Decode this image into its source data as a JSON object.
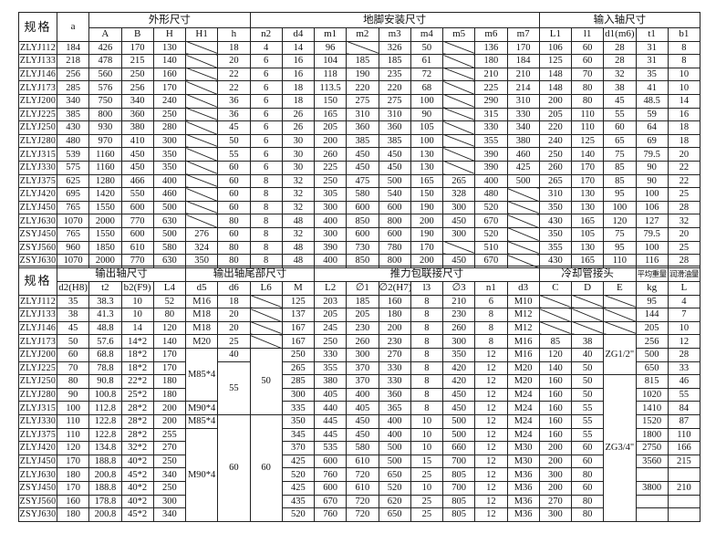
{
  "top": {
    "spec_label": "规格",
    "a_label": "a",
    "groups": [
      "外形尺寸",
      "地脚安装尺寸",
      "输入轴尺寸"
    ],
    "headers": [
      "A",
      "B",
      "H",
      "H1",
      "h",
      "n2",
      "d4",
      "m1",
      "m2",
      "m3",
      "m4",
      "m5",
      "m6",
      "m7",
      "L1",
      "l1",
      "d1(m6)",
      "t1",
      "b1"
    ],
    "rows": [
      [
        "ZLYJ112",
        "184",
        "426",
        "170",
        "130",
        null,
        "18",
        "4",
        "14",
        "96",
        null,
        "326",
        "50",
        null,
        "136",
        "170",
        "106",
        "60",
        "28",
        "31",
        "8"
      ],
      [
        "ZLYJ133",
        "218",
        "478",
        "215",
        "140",
        null,
        "20",
        "6",
        "16",
        "104",
        "185",
        "185",
        "61",
        null,
        "180",
        "184",
        "125",
        "60",
        "28",
        "31",
        "8"
      ],
      [
        "ZLYJ146",
        "256",
        "560",
        "250",
        "160",
        null,
        "22",
        "6",
        "16",
        "118",
        "190",
        "235",
        "72",
        null,
        "210",
        "210",
        "148",
        "70",
        "32",
        "35",
        "10"
      ],
      [
        "ZLYJ173",
        "285",
        "576",
        "256",
        "170",
        null,
        "22",
        "6",
        "18",
        "113.5",
        "220",
        "220",
        "68",
        null,
        "225",
        "214",
        "148",
        "80",
        "38",
        "41",
        "10"
      ],
      [
        "ZLYJ200",
        "340",
        "750",
        "340",
        "240",
        null,
        "36",
        "6",
        "18",
        "150",
        "275",
        "275",
        "100",
        null,
        "290",
        "310",
        "200",
        "80",
        "45",
        "48.5",
        "14"
      ],
      [
        "ZLYJ225",
        "385",
        "800",
        "360",
        "250",
        null,
        "36",
        "6",
        "26",
        "165",
        "310",
        "310",
        "90",
        null,
        "315",
        "330",
        "205",
        "110",
        "55",
        "59",
        "16"
      ],
      [
        "ZLYJ250",
        "430",
        "930",
        "380",
        "280",
        null,
        "45",
        "6",
        "26",
        "205",
        "360",
        "360",
        "105",
        null,
        "330",
        "340",
        "220",
        "110",
        "60",
        "64",
        "18"
      ],
      [
        "ZLYJ280",
        "480",
        "970",
        "410",
        "300",
        null,
        "50",
        "6",
        "30",
        "200",
        "385",
        "385",
        "100",
        null,
        "355",
        "380",
        "240",
        "125",
        "65",
        "69",
        "18"
      ],
      [
        "ZLYJ315",
        "539",
        "1160",
        "450",
        "350",
        null,
        "55",
        "6",
        "30",
        "260",
        "450",
        "450",
        "130",
        null,
        "390",
        "460",
        "250",
        "140",
        "75",
        "79.5",
        "20"
      ],
      [
        "ZLYJ330",
        "575",
        "1160",
        "450",
        "350",
        null,
        "60",
        "6",
        "30",
        "225",
        "450",
        "450",
        "130",
        null,
        "390",
        "425",
        "260",
        "170",
        "85",
        "90",
        "22"
      ],
      [
        "ZLYJ375",
        "625",
        "1280",
        "466",
        "400",
        null,
        "60",
        "8",
        "32",
        "250",
        "475",
        "500",
        "165",
        "265",
        "400",
        "500",
        "265",
        "170",
        "85",
        "90",
        "22"
      ],
      [
        "ZLYJ420",
        "695",
        "1420",
        "550",
        "460",
        null,
        "60",
        "8",
        "32",
        "305",
        "580",
        "540",
        "150",
        "328",
        "480",
        null,
        "310",
        "130",
        "95",
        "100",
        "25"
      ],
      [
        "ZLYJ450",
        "765",
        "1550",
        "600",
        "500",
        null,
        "60",
        "8",
        "32",
        "300",
        "600",
        "600",
        "190",
        "300",
        "520",
        null,
        "350",
        "130",
        "100",
        "106",
        "28"
      ],
      [
        "ZLYJ630",
        "1070",
        "2000",
        "770",
        "630",
        null,
        "80",
        "8",
        "48",
        "400",
        "850",
        "800",
        "200",
        "450",
        "670",
        null,
        "430",
        "165",
        "120",
        "127",
        "32"
      ],
      [
        "ZSYJ450",
        "765",
        "1550",
        "600",
        "500",
        "276",
        "60",
        "8",
        "32",
        "300",
        "600",
        "600",
        "190",
        "300",
        "520",
        null,
        "350",
        "105",
        "75",
        "79.5",
        "20"
      ],
      [
        "ZSYJ560",
        "960",
        "1850",
        "610",
        "580",
        "324",
        "80",
        "8",
        "48",
        "390",
        "730",
        "780",
        "170",
        null,
        "510",
        null,
        "355",
        "130",
        "95",
        "100",
        "25"
      ],
      [
        "ZSYJ630",
        "1070",
        "2000",
        "770",
        "630",
        "350",
        "80",
        "8",
        "48",
        "400",
        "850",
        "800",
        "200",
        "450",
        "670",
        null,
        "430",
        "165",
        "110",
        "116",
        "28"
      ]
    ]
  },
  "bottom": {
    "spec_label": "规格",
    "groups": [
      "输出轴尺寸",
      "输出轴尾部尺寸",
      "推力包联接尺寸",
      "冷却管接头",
      "平均重量",
      "润滑油量"
    ],
    "headers": [
      "d2(H8)",
      "t2",
      "b2(F9)",
      "L4",
      "d5",
      "d6",
      "L6",
      "M",
      "L2",
      "∅1",
      "∅2(H7)",
      "l3",
      "∅3",
      "n1",
      "d3",
      "C",
      "D",
      "E",
      "kg",
      "L"
    ],
    "rows": [
      [
        "ZLYJ112",
        "35",
        "38.3",
        "10",
        "52",
        "M16",
        "18",
        null,
        "125",
        "203",
        "185",
        "160",
        "8",
        "210",
        "6",
        "M10",
        null,
        null,
        null,
        "95",
        "4"
      ],
      [
        "ZLYJ133",
        "38",
        "41.3",
        "10",
        "80",
        "M18",
        "20",
        null,
        "137",
        "205",
        "205",
        "180",
        "8",
        "230",
        "8",
        "M12",
        null,
        null,
        null,
        "144",
        "7"
      ],
      [
        "ZLYJ146",
        "45",
        "48.8",
        "14",
        "120",
        "M18",
        "20",
        null,
        "167",
        "245",
        "230",
        "200",
        "8",
        "260",
        "8",
        "M12",
        null,
        null,
        null,
        "205",
        "10"
      ],
      [
        "ZLYJ173",
        "50",
        "57.6",
        "14*2",
        "140",
        "M20",
        "25",
        null,
        "167",
        "250",
        "260",
        "230",
        "8",
        "300",
        "8",
        "M16",
        "85",
        "38",
        {
          "v": "ZG1/2\"",
          "rowspan": 3
        },
        "256",
        "12"
      ],
      [
        "ZLYJ200",
        "60",
        "68.8",
        "18*2",
        "170",
        {
          "v": "M85*4",
          "rowspan": 4
        },
        "40",
        {
          "v": "50",
          "rowspan": 5
        },
        "250",
        "330",
        "300",
        "270",
        "8",
        "350",
        "12",
        "M16",
        "120",
        "40",
        "500",
        "28"
      ],
      [
        "ZLYJ225",
        "70",
        "78.8",
        "18*2",
        "170",
        {
          "v": "55",
          "rowspan": 4
        },
        "265",
        "355",
        "370",
        "330",
        "8",
        "420",
        "12",
        "M20",
        "140",
        "50",
        "650",
        "33"
      ],
      [
        "ZLYJ250",
        "80",
        "90.8",
        "22*2",
        "180",
        "285",
        "380",
        "370",
        "330",
        "8",
        "420",
        "12",
        "M20",
        "160",
        "50",
        {
          "v": "ZG3/4\"",
          "rowspan": 11
        },
        "815",
        "46"
      ],
      [
        "ZLYJ280",
        "90",
        "100.8",
        "25*2",
        "180",
        "300",
        "405",
        "400",
        "360",
        "8",
        "450",
        "12",
        "M24",
        "160",
        "50",
        "1020",
        "55"
      ],
      [
        "ZLYJ315",
        "100",
        "112.8",
        "28*2",
        "200",
        "M90*4",
        "335",
        "440",
        "405",
        "365",
        "8",
        "450",
        "12",
        "M24",
        "160",
        "55",
        "1410",
        "84"
      ],
      [
        "ZLYJ330",
        "110",
        "122.8",
        "28*2",
        "200",
        "M85*4",
        {
          "v": "60",
          "rowspan": 8
        },
        {
          "v": "60",
          "rowspan": 8
        },
        "350",
        "445",
        "450",
        "400",
        "10",
        "500",
        "12",
        "M24",
        "160",
        "55",
        "1520",
        "87"
      ],
      [
        "ZLYJ375",
        "110",
        "122.8",
        "28*2",
        "255",
        {
          "v": "M90*4",
          "rowspan": 7
        },
        "345",
        "445",
        "450",
        "400",
        "10",
        "500",
        "12",
        "M24",
        "160",
        "55",
        "1800",
        "110"
      ],
      [
        "ZLYJ420",
        "120",
        "134.8",
        "32*2",
        "270",
        "370",
        "535",
        "580",
        "500",
        "10",
        "660",
        "12",
        "M30",
        "200",
        "60",
        "2750",
        "166"
      ],
      [
        "ZLYJ450",
        "170",
        "188.8",
        "40*2",
        "250",
        "425",
        "600",
        "610",
        "500",
        "15",
        "700",
        "12",
        "M30",
        "200",
        "60",
        "3560",
        "215"
      ],
      [
        "ZLYJ630",
        "180",
        "200.8",
        "45*2",
        "340",
        "520",
        "760",
        "720",
        "650",
        "25",
        "805",
        "12",
        "M36",
        "300",
        "80",
        "",
        ""
      ],
      [
        "ZSYJ450",
        "170",
        "188.8",
        "40*2",
        "250",
        "425",
        "600",
        "610",
        "520",
        "10",
        "700",
        "12",
        "M36",
        "200",
        "60",
        "3800",
        "210"
      ],
      [
        "ZSYJ560",
        "160",
        "178.8",
        "40*2",
        "300",
        "435",
        "670",
        "720",
        "620",
        "25",
        "805",
        "12",
        "M36",
        "270",
        "80",
        "",
        ""
      ],
      [
        "ZSYJ630",
        "180",
        "200.8",
        "45*2",
        "340",
        "520",
        "760",
        "720",
        "650",
        "25",
        "805",
        "12",
        "M36",
        "300",
        "80",
        "",
        ""
      ]
    ]
  }
}
